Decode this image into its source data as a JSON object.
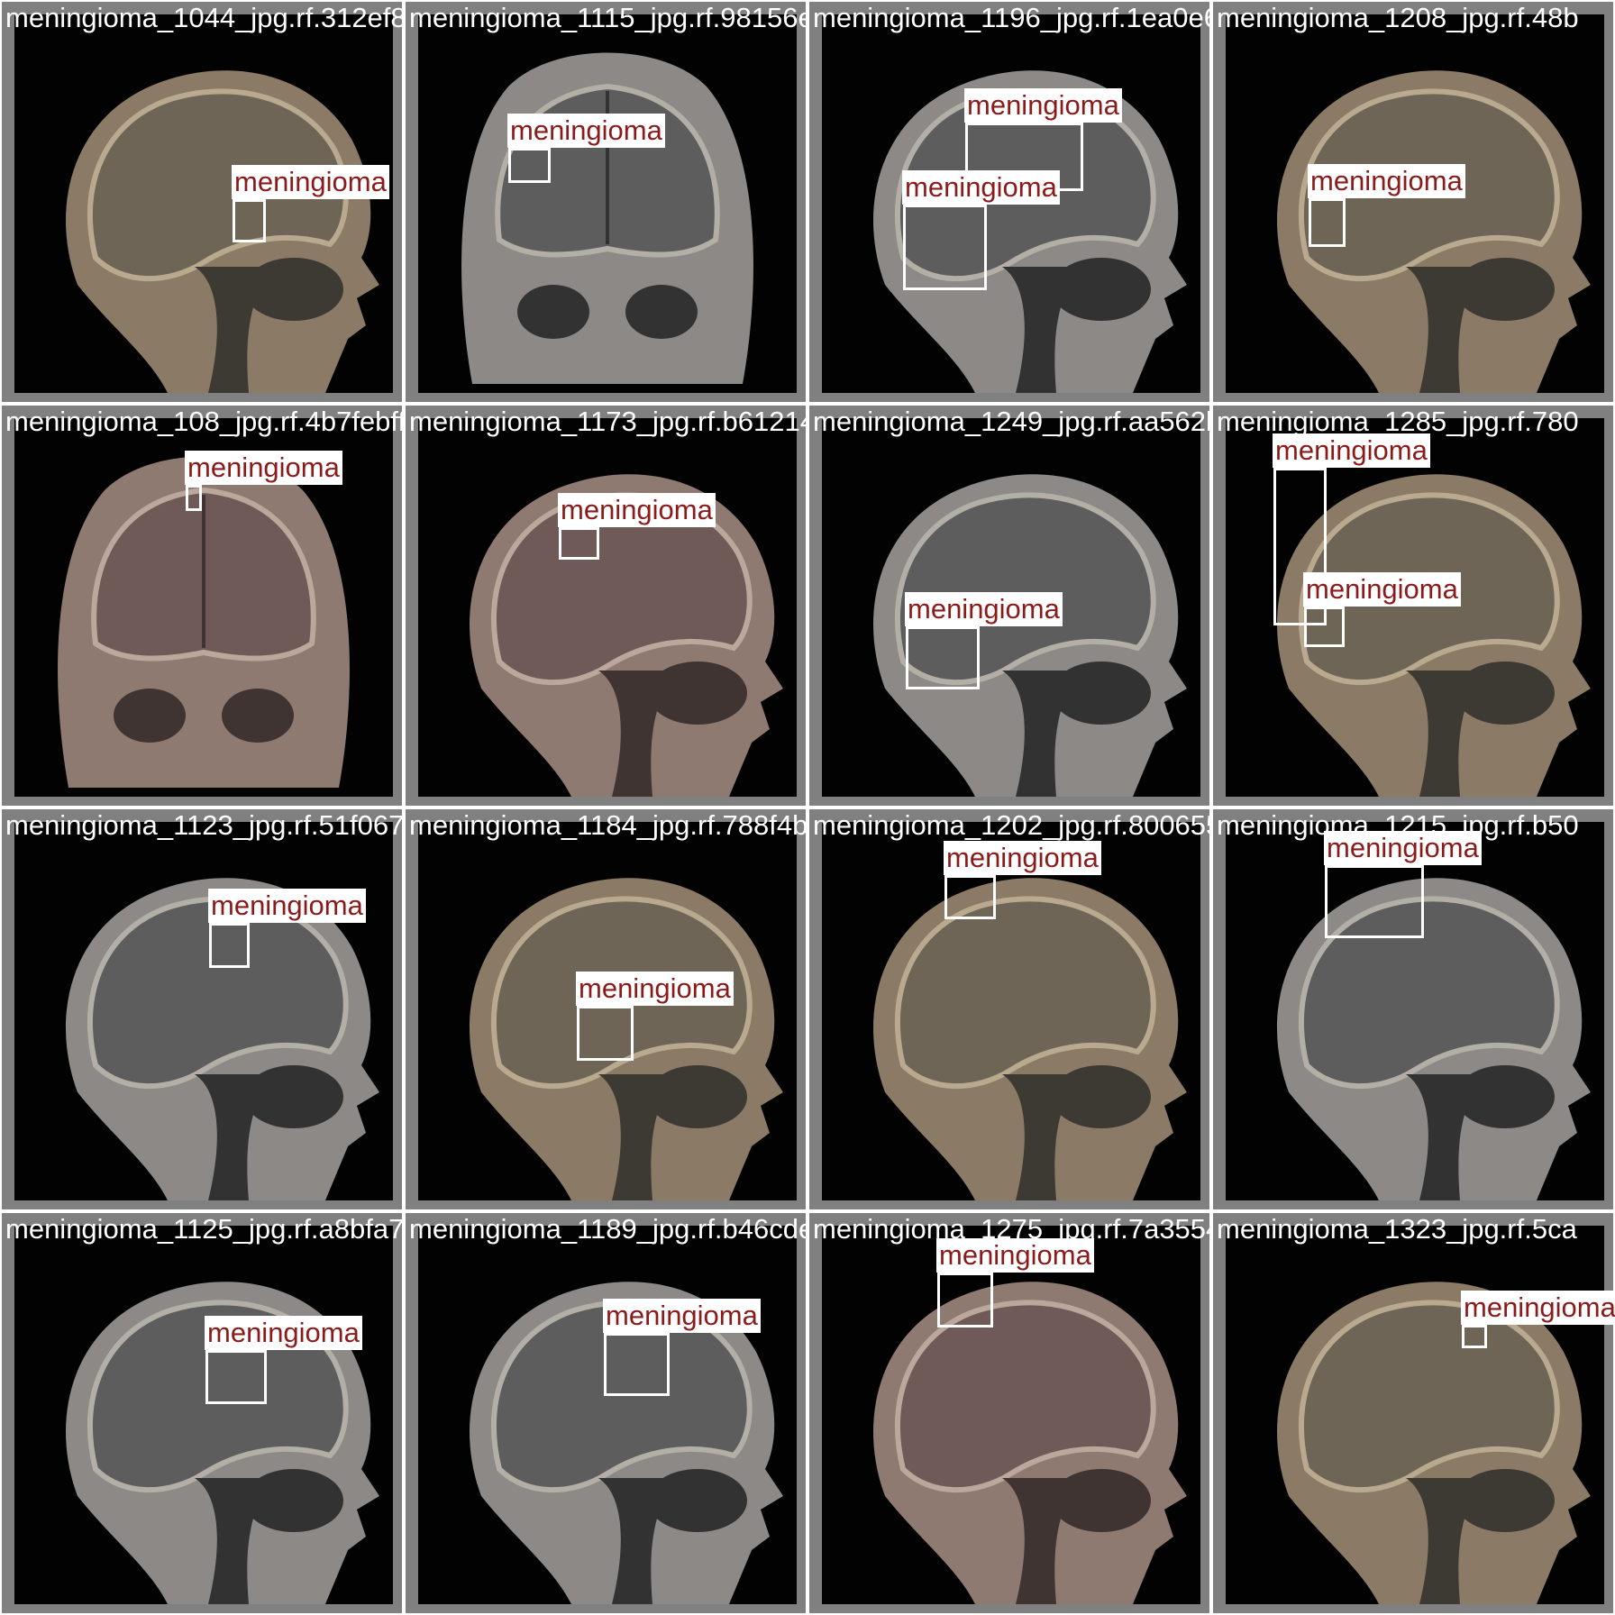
{
  "grid": {
    "colors": {
      "separator": "#ffffff",
      "tile_border": "#808080",
      "label_text": "#8b1a1a",
      "label_bg": "#ffffff",
      "box": "#ffffff"
    },
    "tiles": [
      {
        "filename": "meningioma_1044_jpg.rf.312ef8319cdbd1b85_jpg.rf.98156ea3bf9d25b1c96_jpg.rf.1eaa0e622f1afa93208_jpg.rf.48b",
        "view": "sagittal",
        "tone": "warm",
        "detections": [
          {
            "label": "meningioma"
          }
        ]
      },
      {
        "filename": "meningioma_1115_jpg.rf.98156ea3bf9d25b1c96_jpg.rf.1ea",
        "view": "coronal",
        "tone": "gray",
        "detections": [
          {
            "label": "meningioma"
          }
        ]
      },
      {
        "filename": "meningioma_1196_jpg.rf.1ea0e622f1afa93208_jpg.rf.48b",
        "view": "sagittal",
        "tone": "gray",
        "detections": [
          {
            "label": "meningioma"
          },
          {
            "label": "meningioma"
          }
        ]
      },
      {
        "filename": "meningioma_1208_jpg.rf.48b",
        "view": "sagittal",
        "tone": "warm",
        "detections": [
          {
            "label": "meningioma"
          }
        ]
      },
      {
        "filename": "meningioma_108_jpg.rf.4b7febff023e20c521173_jpg.rf.b61214d2f294e442498_jpg.rf.aa562bb4334a3a2851_jpg.rf.780",
        "view": "coronal",
        "tone": "pink",
        "detections": [
          {
            "label": "meningioma"
          }
        ]
      },
      {
        "filename": "meningioma_1173_jpg.rf.b61214d2f294e442498_jpg.rf.aa5",
        "view": "sagittal",
        "tone": "pink",
        "detections": [
          {
            "label": "meningioma"
          }
        ]
      },
      {
        "filename": "meningioma_1249_jpg.rf.aa562bb4334a3a2851_jpg.rf.780",
        "view": "sagittal",
        "tone": "gray",
        "detections": [
          {
            "label": "meningioma"
          }
        ]
      },
      {
        "filename": "meningioma_1285_jpg.rf.780",
        "view": "sagittal",
        "tone": "warm",
        "detections": [
          {
            "label": "meningioma"
          },
          {
            "label": "meningioma"
          }
        ]
      },
      {
        "filename": "meningioma_1123_jpg.rf.51f067df444ea841084_jpg.rf.788f4bad90055d1202_jpg.rf.8006550agdd601215_jpg.rf.b50",
        "view": "sagittal",
        "tone": "gray",
        "detections": [
          {
            "label": "meningioma"
          }
        ]
      },
      {
        "filename": "meningioma_1184_jpg.rf.788f4bad90055d1202_jpg.rf.800",
        "view": "sagittal",
        "tone": "warm",
        "detections": [
          {
            "label": "meningioma"
          }
        ]
      },
      {
        "filename": "meningioma_1202_jpg.rf.8006550agdd601215_jpg.rf.b50",
        "view": "sagittal",
        "tone": "warm",
        "detections": [
          {
            "label": "meningioma"
          }
        ]
      },
      {
        "filename": "meningioma_1215_jpg.rf.b50",
        "view": "sagittal",
        "tone": "gray",
        "detections": [
          {
            "label": "meningioma"
          }
        ]
      },
      {
        "filename": "meningioma_1125_jpg.rf.a8bfa701cc1fe4c4489_jpg.rf.b46cdeb8b38a411275_jpg.rf.7a35541d2ce9a35923_jpg.rf.5ca",
        "view": "sagittal",
        "tone": "gray",
        "detections": [
          {
            "label": "meningioma"
          }
        ]
      },
      {
        "filename": "meningioma_1189_jpg.rf.b46cdeb8b38a411275_jpg.rf.7a3",
        "view": "sagittal",
        "tone": "gray",
        "detections": [
          {
            "label": "meningioma"
          }
        ]
      },
      {
        "filename": "meningioma_1275_jpg.rf.7a35541d2ce9a35923_jpg.rf.5ca",
        "view": "sagittal",
        "tone": "pink",
        "detections": [
          {
            "label": "meningioma"
          }
        ]
      },
      {
        "filename": "meningioma_1323_jpg.rf.5ca",
        "view": "sagittal",
        "tone": "warm",
        "detections": [
          {
            "label": "meningioma"
          }
        ]
      }
    ]
  }
}
